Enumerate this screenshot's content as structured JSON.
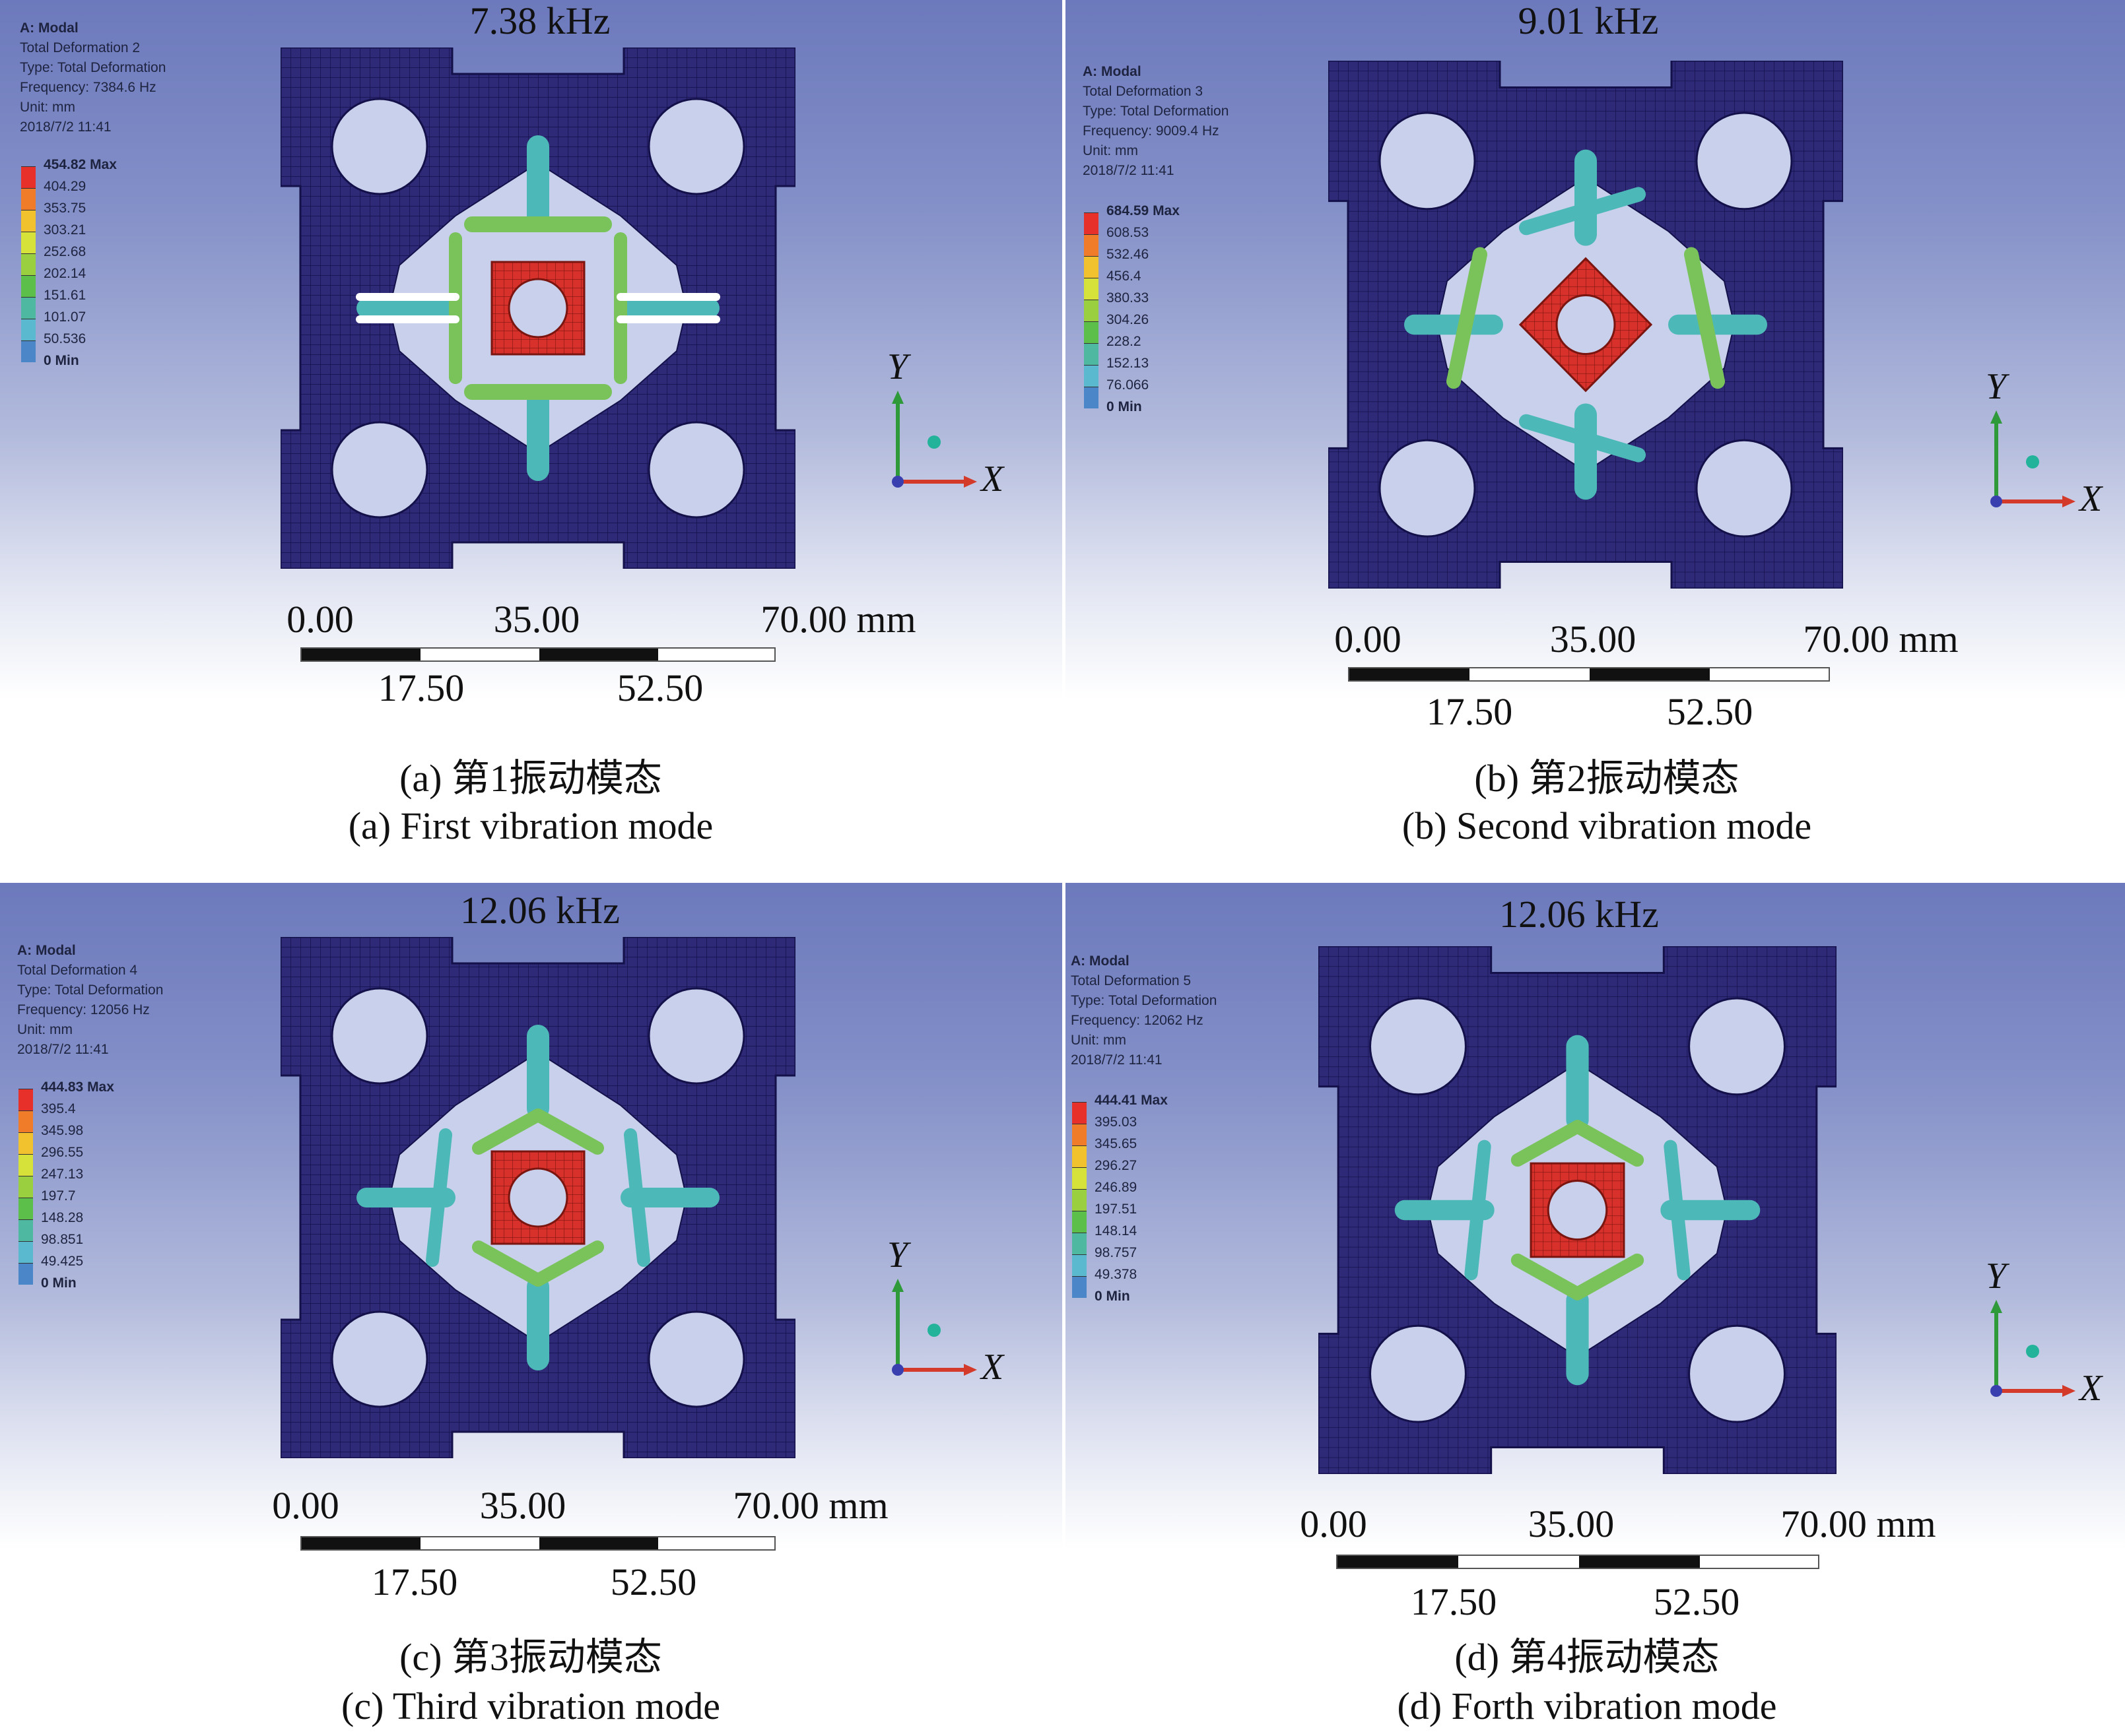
{
  "panels": [
    {
      "freq": "7.38 kHz",
      "info": [
        "A: Modal",
        "Total Deformation 2",
        "Type: Total Deformation",
        "Frequency: 7384.6 Hz",
        "Unit: mm",
        "2018/7/2 11:41"
      ],
      "legend": [
        "454.82 Max",
        "404.29",
        "353.75",
        "303.21",
        "252.68",
        "202.14",
        "151.61",
        "101.07",
        "50.536",
        "0 Min"
      ],
      "scale": {
        "top": [
          "0.00",
          "35.00",
          "70.00 mm"
        ],
        "bottom": [
          "17.50",
          "52.50"
        ]
      },
      "axis": {
        "y": "Y",
        "x": "X"
      },
      "caption_cn": "(a) 第1振动模态",
      "caption_en": "(a) First vibration mode",
      "mode": "first"
    },
    {
      "freq": "9.01 kHz",
      "info": [
        "A: Modal",
        "Total Deformation 3",
        "Type: Total Deformation",
        "Frequency: 9009.4 Hz",
        "Unit: mm",
        "2018/7/2 11:41"
      ],
      "legend": [
        "684.59 Max",
        "608.53",
        "532.46",
        "456.4",
        "380.33",
        "304.26",
        "228.2",
        "152.13",
        "76.066",
        "0 Min"
      ],
      "scale": {
        "top": [
          "0.00",
          "35.00",
          "70.00 mm"
        ],
        "bottom": [
          "17.50",
          "52.50"
        ]
      },
      "axis": {
        "y": "Y",
        "x": "X"
      },
      "caption_cn": "(b) 第2振动模态",
      "caption_en": "(b) Second vibration mode",
      "mode": "second"
    },
    {
      "freq": "12.06 kHz",
      "info": [
        "A: Modal",
        "Total Deformation 4",
        "Type: Total Deformation",
        "Frequency: 12056 Hz",
        "Unit: mm",
        "2018/7/2 11:41"
      ],
      "legend": [
        "444.83 Max",
        "395.4",
        "345.98",
        "296.55",
        "247.13",
        "197.7",
        "148.28",
        "98.851",
        "49.425",
        "0 Min"
      ],
      "scale": {
        "top": [
          "0.00",
          "35.00",
          "70.00 mm"
        ],
        "bottom": [
          "17.50",
          "52.50"
        ]
      },
      "axis": {
        "y": "Y",
        "x": "X"
      },
      "caption_cn": "(c) 第3振动模态",
      "caption_en": "(c) Third vibration mode",
      "mode": "third"
    },
    {
      "freq": "12.06 kHz",
      "info": [
        "A: Modal",
        "Total Deformation 5",
        "Type: Total Deformation",
        "Frequency: 12062 Hz",
        "Unit: mm",
        "2018/7/2 11:41"
      ],
      "legend": [
        "444.41 Max",
        "395.03",
        "345.65",
        "296.27",
        "246.89",
        "197.51",
        "148.14",
        "98.757",
        "49.378",
        "0 Min"
      ],
      "scale": {
        "top": [
          "0.00",
          "35.00",
          "70.00 mm"
        ],
        "bottom": [
          "17.50",
          "52.50"
        ]
      },
      "axis": {
        "y": "Y",
        "x": "X"
      },
      "caption_cn": "(d) 第4振动模态",
      "caption_en": "(d) Forth vibration mode",
      "mode": "fourth"
    }
  ],
  "colors": {
    "legend": [
      "#e8302a",
      "#f07c2a",
      "#f2c12e",
      "#d6e23a",
      "#9ad03f",
      "#5cbf4a",
      "#4fb8a0",
      "#5ab9cf",
      "#4a86c8",
      "#2a2f86"
    ],
    "structure": "#2e2a78",
    "mesh": "#14104a",
    "hole": "#c8d0ec",
    "center_red": "#d8302a",
    "beam_green": "#79c35a",
    "beam_cyan": "#4db8b8",
    "axis_y": "#2f9a3a",
    "axis_x": "#d33a2a",
    "axis_origin": "#3a3fb0",
    "axis_dot": "#22b39a"
  }
}
